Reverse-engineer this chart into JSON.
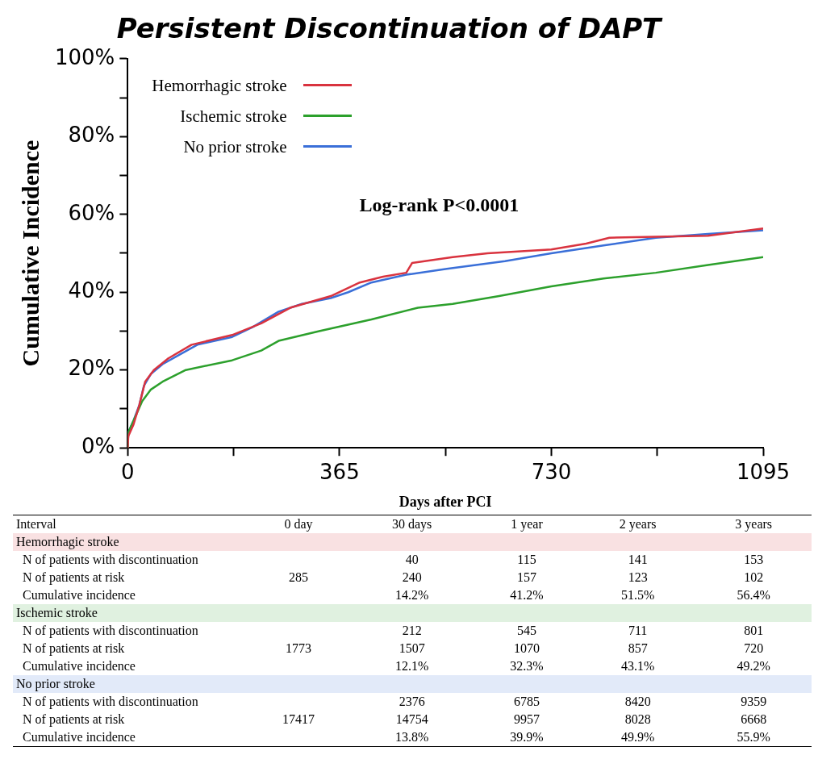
{
  "chart_data": {
    "type": "line",
    "title": "Persistent Discontinuation of DAPT",
    "xlabel": "Days after PCI",
    "ylabel": "Cumulative Incidence",
    "xlim": [
      0,
      1095
    ],
    "xticks": [
      0,
      {
        "value": 182.5,
        "label": null
      },
      365,
      {
        "value": 547.5,
        "label": null
      },
      730,
      {
        "value": 912.5,
        "label": null
      },
      1095
    ],
    "ylim": [
      0,
      100
    ],
    "yticks": [
      {
        "value": 0,
        "label": "0%"
      },
      {
        "value": 10,
        "label": null
      },
      {
        "value": 20,
        "label": "20%"
      },
      {
        "value": 30,
        "label": null
      },
      {
        "value": 40,
        "label": "40%"
      },
      {
        "value": 50,
        "label": null
      },
      {
        "value": 60,
        "label": "60%"
      },
      {
        "value": 70,
        "label": null
      },
      {
        "value": 80,
        "label": "80%"
      },
      {
        "value": 90,
        "label": null
      },
      {
        "value": 100,
        "label": "100%"
      }
    ],
    "grid": false,
    "legend": "top left",
    "marker": "none",
    "line_style": "solid",
    "series": [
      {
        "name": "Hemorrhagic stroke",
        "color": "#d9333f",
        "x": [
          0,
          1,
          10,
          20,
          30,
          45,
          70,
          110,
          180,
          230,
          280,
          350,
          400,
          440,
          480,
          490,
          560,
          620,
          730,
          790,
          830,
          1000,
          1095
        ],
        "values": [
          0,
          3,
          6,
          11,
          17,
          20,
          23,
          26.5,
          29,
          32,
          36,
          39,
          42.5,
          44,
          45,
          47.5,
          49,
          50,
          51,
          52.5,
          54,
          54.5,
          56.4
        ]
      },
      {
        "name": "Ischemic stroke",
        "color": "#2ca02c",
        "x": [
          0,
          1,
          10,
          25,
          40,
          60,
          100,
          180,
          230,
          260,
          330,
          420,
          500,
          560,
          640,
          730,
          820,
          910,
          1000,
          1095
        ],
        "values": [
          0,
          4,
          7,
          12,
          15,
          17,
          20,
          22.5,
          25,
          27.5,
          30,
          33,
          36,
          37,
          39,
          41.5,
          43.5,
          45,
          47,
          49
        ]
      },
      {
        "name": "No prior stroke",
        "color": "#3a6fd8",
        "x": [
          0,
          1,
          10,
          20,
          28,
          40,
          60,
          90,
          120,
          180,
          215,
          260,
          300,
          350,
          380,
          420,
          480,
          550,
          650,
          730,
          820,
          910,
          1000,
          1095
        ],
        "values": [
          0,
          4,
          7,
          11,
          16,
          19,
          21.5,
          24,
          26.5,
          28.5,
          31,
          35,
          37,
          38.5,
          40,
          42.5,
          44.5,
          46,
          48,
          50,
          52,
          54,
          55,
          55.9
        ]
      }
    ],
    "annotations": [
      "Log-rank P<0.0001",
      "Interval",
      "0 day",
      "30 days",
      "1 year",
      "2 years",
      "3 years",
      "Hemorrhagic stroke",
      "N of patients with discontinuation",
      "40",
      "115",
      "141",
      "153",
      "N of patients at risk",
      "285",
      "240",
      "157",
      "123",
      "102",
      "Cumulative incidence",
      "14.2%",
      "41.2%",
      "51.5%",
      "56.4%",
      "Ischemic stroke",
      "N of patients with discontinuation",
      "212",
      "545",
      "711",
      "801",
      "N of patients at risk",
      "1773",
      "1507",
      "1070",
      "857",
      "720",
      "Cumulative incidence",
      "12.1%",
      "32.3%",
      "43.1%",
      "49.2%",
      "No prior stroke",
      "N of patients with discontinuation",
      "2376",
      "6785",
      "8420",
      "9359",
      "N of patients at risk",
      "17417",
      "14754",
      "9957",
      "8028",
      "6668",
      "Cumulative incidence",
      "13.8%",
      "39.9%",
      "49.9%",
      "55.9%"
    ]
  }
}
